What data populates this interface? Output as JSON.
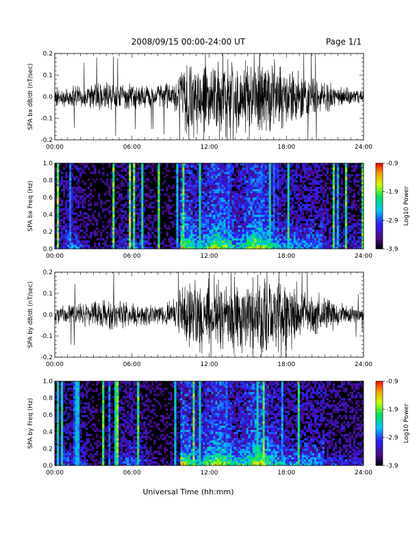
{
  "header": {
    "title": "2008/09/15  00:00-24:00 UT",
    "page": "Page 1/1"
  },
  "chart_data": [
    {
      "type": "line",
      "ylabel": "SPA bx dB/dt (nT/sec)",
      "xlim": [
        0,
        24
      ],
      "ylim": [
        -0.2,
        0.2
      ],
      "x_ticks": [
        "00:00",
        "06:00",
        "12:00",
        "18:00",
        "24:00"
      ],
      "y_ticks": [
        "0.2",
        "0.1",
        "0.0",
        "-0.1",
        "-0.2"
      ],
      "envelope": {
        "hours": [
          0,
          2,
          4,
          6,
          8,
          9.5,
          10,
          11,
          12,
          13,
          14,
          15,
          16,
          17,
          18,
          19,
          20,
          21,
          22,
          23,
          24
        ],
        "amplitude": [
          0.05,
          0.06,
          0.08,
          0.06,
          0.06,
          0.09,
          0.2,
          0.2,
          0.2,
          0.2,
          0.2,
          0.2,
          0.2,
          0.2,
          0.15,
          0.12,
          0.1,
          0.08,
          0.06,
          0.04,
          0.03
        ]
      }
    },
    {
      "type": "heatmap",
      "ylabel": "SPA bx Freq (Hz)",
      "xlim": [
        0,
        24
      ],
      "ylim": [
        0,
        1.0
      ],
      "x_ticks": [
        "00:00",
        "06:00",
        "12:00",
        "18:00",
        "24:00"
      ],
      "y_ticks": [
        "1.0",
        "0.8",
        "0.6",
        "0.4",
        "0.2",
        "0.0"
      ],
      "colorbar": {
        "label": "Log10 Power",
        "ticks": [
          "-0.9",
          "-1.9",
          "-2.9",
          "-3.9"
        ],
        "range": [
          -3.9,
          -0.9
        ]
      }
    },
    {
      "type": "line",
      "ylabel": "SPA by dB/dt (nT/sec)",
      "xlim": [
        0,
        24
      ],
      "ylim": [
        -0.2,
        0.2
      ],
      "x_ticks": [
        "00:00",
        "06:00",
        "12:00",
        "18:00",
        "24:00"
      ],
      "y_ticks": [
        "0.2",
        "0.1",
        "0.0",
        "-0.1",
        "-0.2"
      ],
      "envelope": {
        "hours": [
          0,
          2,
          4,
          6,
          8,
          9.5,
          10,
          11,
          12,
          13,
          14,
          15,
          16,
          17,
          18,
          19,
          20,
          21,
          22,
          23,
          24
        ],
        "amplitude": [
          0.05,
          0.06,
          0.09,
          0.06,
          0.06,
          0.09,
          0.2,
          0.2,
          0.2,
          0.2,
          0.2,
          0.2,
          0.2,
          0.2,
          0.2,
          0.16,
          0.12,
          0.1,
          0.07,
          0.05,
          0.03
        ]
      }
    },
    {
      "type": "heatmap",
      "ylabel": "SPA by Freq (Hz)",
      "xlim": [
        0,
        24
      ],
      "ylim": [
        0,
        1.0
      ],
      "x_ticks": [
        "00:00",
        "06:00",
        "12:00",
        "18:00",
        "24:00"
      ],
      "y_ticks": [
        "1.0",
        "0.8",
        "0.6",
        "0.4",
        "0.2",
        "0.0"
      ],
      "colorbar": {
        "label": "Log10 Power",
        "ticks": [
          "-0.9",
          "-1.9",
          "-2.9",
          "-3.9"
        ],
        "range": [
          -3.9,
          -0.9
        ]
      }
    }
  ],
  "footer": {
    "xlabel": "Universal Time (hh:mm)"
  }
}
